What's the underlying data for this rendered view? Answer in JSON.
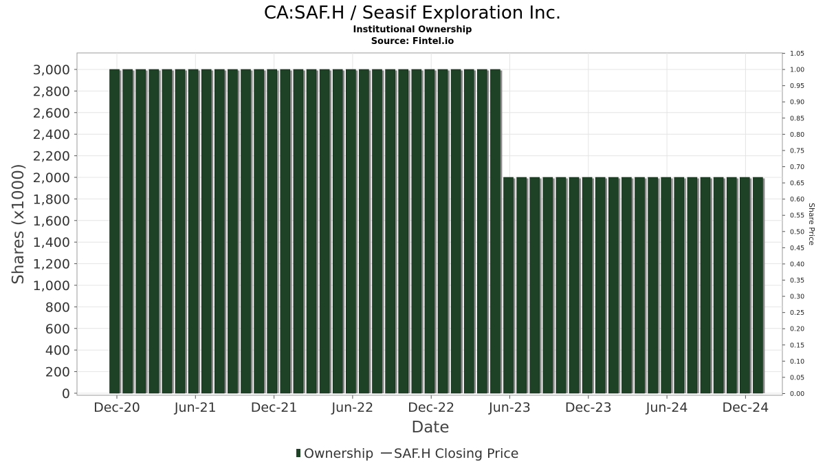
{
  "chart_data": {
    "type": "bar",
    "title": "CA:SAF.H / Seasif Exploration Inc.",
    "subtitle": "Institutional Ownership",
    "source": "Source: Fintel.io",
    "xlabel": "Date",
    "ylabel": "Shares (x1000)",
    "y2label": "Share Price",
    "ylim": [
      0,
      3100
    ],
    "y2lim": [
      0,
      1.05
    ],
    "yticks": [
      "0",
      "200",
      "400",
      "600",
      "800",
      "1,000",
      "1,200",
      "1,400",
      "1,600",
      "1,800",
      "2,000",
      "2,200",
      "2,400",
      "2,600",
      "2,800",
      "3,000"
    ],
    "y2ticks": [
      "0.00",
      "0.05",
      "0.10",
      "0.15",
      "0.20",
      "0.25",
      "0.30",
      "0.35",
      "0.40",
      "0.45",
      "0.50",
      "0.55",
      "0.60",
      "0.65",
      "0.70",
      "0.75",
      "0.80",
      "0.85",
      "0.90",
      "0.95",
      "1.00",
      "1.05"
    ],
    "xticks": [
      "Dec-20",
      "Jun-21",
      "Dec-21",
      "Jun-22",
      "Dec-22",
      "Jun-23",
      "Dec-23",
      "Jun-24",
      "Dec-24"
    ],
    "grid": true,
    "series": [
      {
        "name": "Ownership",
        "color": "#1e4226",
        "values": [
          3000,
          3000,
          3000,
          3000,
          3000,
          3000,
          3000,
          3000,
          3000,
          3000,
          3000,
          3000,
          3000,
          3000,
          3000,
          3000,
          3000,
          3000,
          3000,
          3000,
          3000,
          3000,
          3000,
          3000,
          3000,
          3000,
          3000,
          3000,
          3000,
          3000,
          2000,
          2000,
          2000,
          2000,
          2000,
          2000,
          2000,
          2000,
          2000,
          2000,
          2000,
          2000,
          2000,
          2000,
          2000,
          2000,
          2000,
          2000,
          2000,
          2000
        ]
      },
      {
        "name": "SAF.H Closing Price",
        "color": "#555555",
        "values": []
      }
    ],
    "legend_position": "bottom-center"
  }
}
